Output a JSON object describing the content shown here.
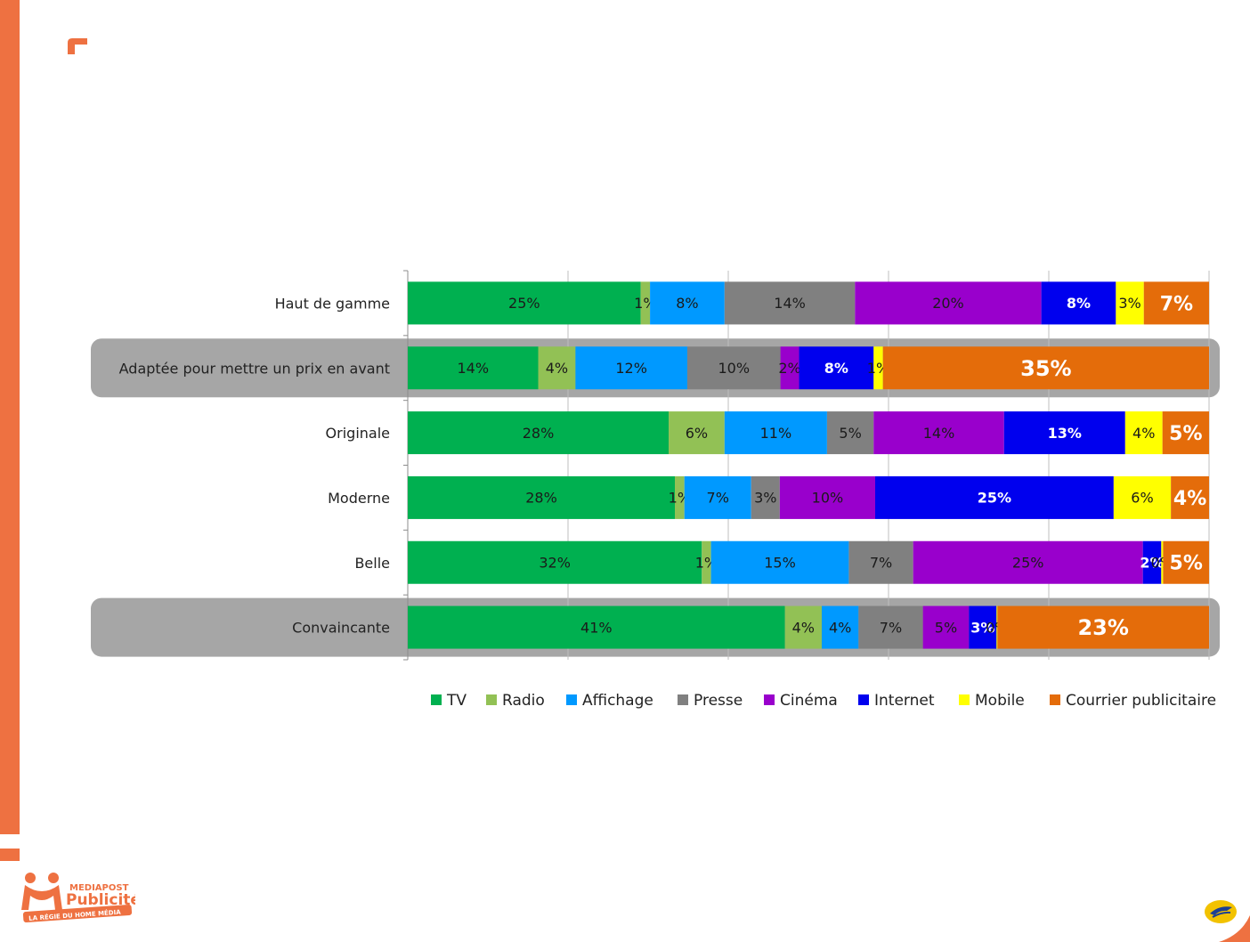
{
  "chart_data": {
    "type": "bar",
    "orientation": "horizontal",
    "stacked": true,
    "normalized": true,
    "title": "",
    "xlabel": "",
    "ylabel": "",
    "xlim": [
      0,
      100
    ],
    "grid": true,
    "legend_position": "bottom",
    "categories": [
      "Haut de gamme",
      "Adaptée pour mettre un prix en avant",
      "Originale",
      "Moderne",
      "Belle",
      "Convaincante"
    ],
    "highlighted": [
      "Adaptée pour mettre un prix en avant",
      "Convaincante"
    ],
    "series": [
      {
        "name": "TV",
        "color": "#00b050",
        "values": [
          25,
          14,
          28,
          28,
          32,
          41
        ],
        "labels": [
          "25%",
          "14%",
          "28%",
          "28%",
          "32%",
          "41%"
        ]
      },
      {
        "name": "Radio",
        "color": "#92c155",
        "values": [
          1,
          4,
          6,
          1,
          1,
          4
        ],
        "labels": [
          "1%",
          "4%",
          "6%",
          "1%",
          "1%",
          "4%"
        ]
      },
      {
        "name": "Affichage",
        "color": "#0099ff",
        "values": [
          8,
          12,
          11,
          7,
          15,
          4
        ],
        "labels": [
          "8%",
          "12%",
          "11%",
          "7%",
          "15%",
          "4%"
        ]
      },
      {
        "name": "Presse",
        "color": "#808080",
        "values": [
          14,
          10,
          5,
          3,
          7,
          7
        ],
        "labels": [
          "14%",
          "10%",
          "5%",
          "3%",
          "7%",
          "7%"
        ]
      },
      {
        "name": "Cinéma",
        "color": "#9900cc",
        "values": [
          20,
          2,
          14,
          10,
          25,
          5
        ],
        "labels": [
          "20%",
          "2%",
          "14%",
          "10%",
          "25%",
          "5%"
        ]
      },
      {
        "name": "Internet",
        "color": "#0000ee",
        "values": [
          8,
          8,
          13,
          25,
          2,
          3
        ],
        "labels": [
          "8%",
          "8%",
          "13%",
          "25%",
          "2%",
          "3%"
        ]
      },
      {
        "name": "Mobile",
        "color": "#ffff00",
        "values": [
          3,
          1,
          4,
          6,
          0.2,
          0.1
        ],
        "labels": [
          "3%",
          "1%",
          "4%",
          "6%",
          "0%",
          "0%"
        ]
      },
      {
        "name": "Courrier publicitaire",
        "color": "#e46c0a",
        "values": [
          7,
          35,
          5,
          4,
          5,
          23
        ],
        "labels": [
          "7%",
          "35%",
          "5%",
          "4%",
          "5%",
          "23%"
        ]
      }
    ]
  },
  "branding": {
    "logo_line1": "MEDIAPOST",
    "logo_line2": "Publicité",
    "logo_tagline": "LA RÉGIE DU HOME MÉDIA",
    "accent_color": "#ee7141"
  }
}
